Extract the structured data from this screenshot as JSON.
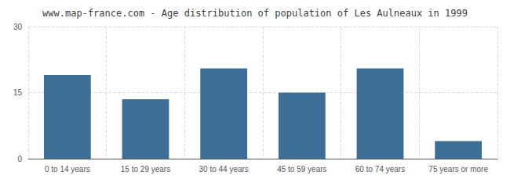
{
  "chart_data": {
    "type": "bar",
    "title": "www.map-france.com - Age distribution of population of Les Aulneaux in 1999",
    "categories": [
      "0 to 14 years",
      "15 to 29 years",
      "30 to 44 years",
      "45 to 59 years",
      "60 to 74 years",
      "75 years or more"
    ],
    "values": [
      19,
      13.5,
      20.5,
      15,
      20.5,
      4
    ],
    "color": "#3d6e96",
    "ylim": [
      0,
      30
    ],
    "yticks": [
      0,
      15,
      30
    ],
    "grid": true
  }
}
